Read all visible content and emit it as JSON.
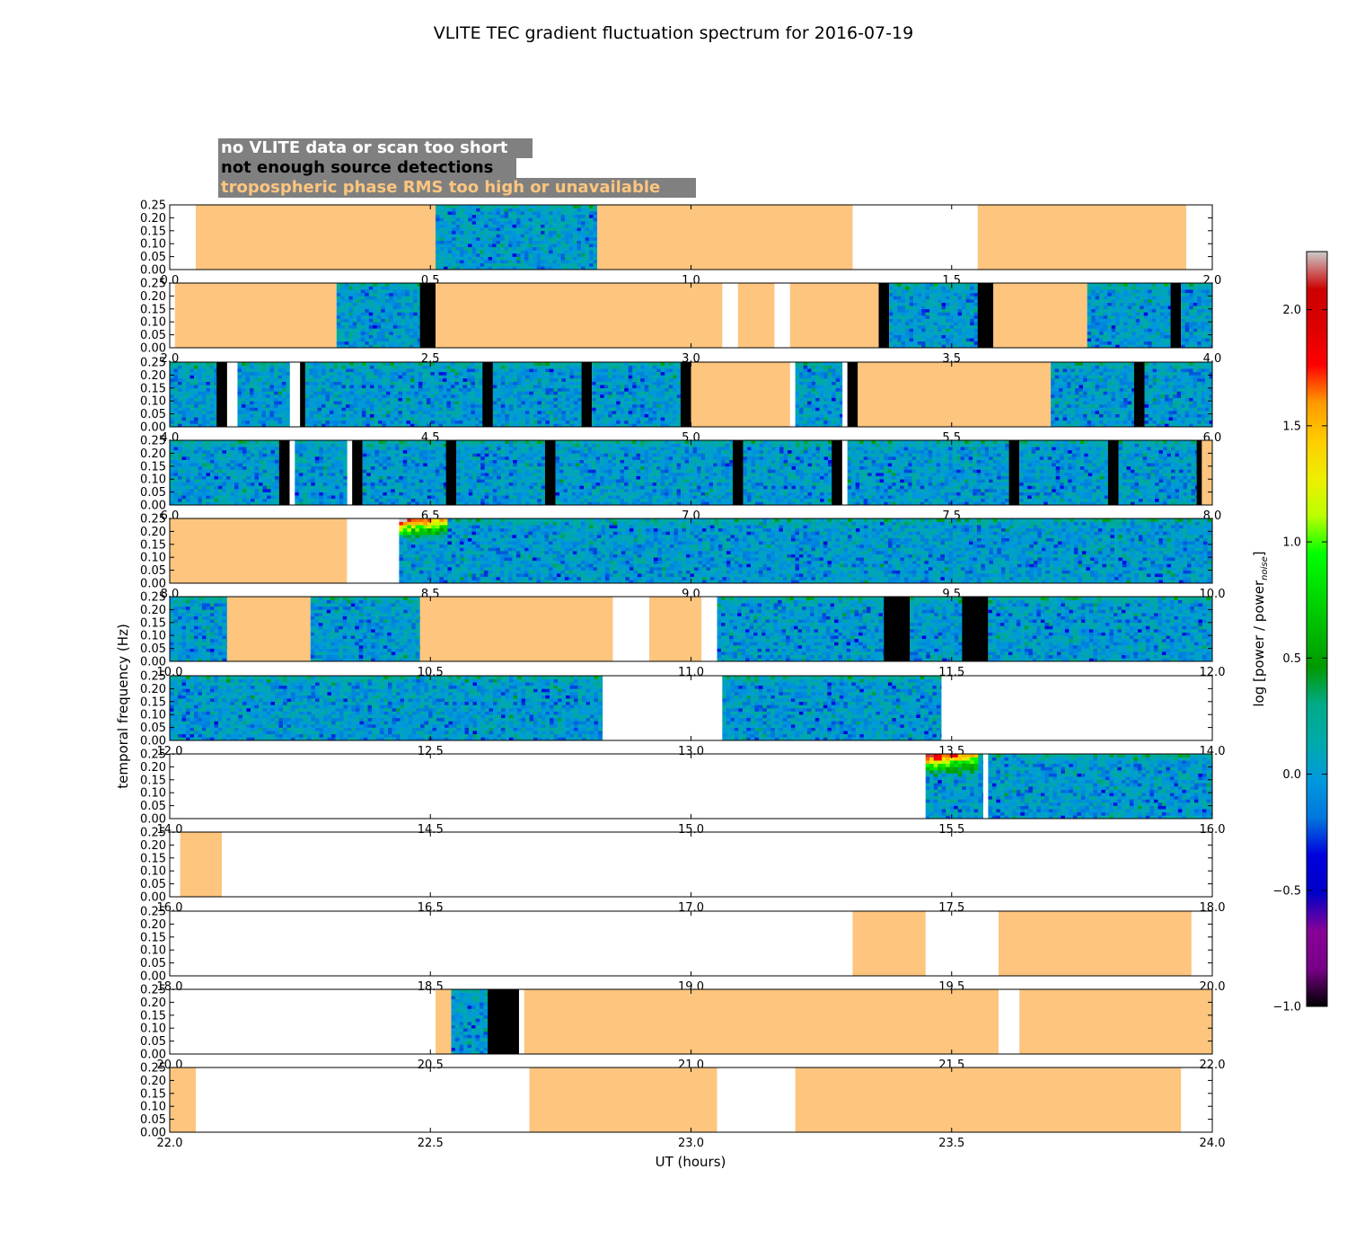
{
  "chart_data": {
    "type": "heatmap",
    "title": "VLITE TEC gradient fluctuation spectrum for 2016-07-19",
    "xlabel": "UT (hours)",
    "ylabel": "temporal frequency (Hz)",
    "colorbar": {
      "label": "log [power / power",
      "label_subscript": "noise",
      "label_close": "]",
      "range": [
        -1.0,
        2.25
      ],
      "ticks": [
        "−1.0",
        "−0.5",
        "0.0",
        "0.5",
        "1.0",
        "1.5",
        "2.0"
      ],
      "tick_values": [
        -1.0,
        -0.5,
        0.0,
        0.5,
        1.0,
        1.5,
        2.0
      ],
      "colormap": "nipy_spectral"
    },
    "ylim": [
      0,
      0.25
    ],
    "yticks": [
      "0.00",
      "0.05",
      "0.10",
      "0.15",
      "0.20",
      "0.25"
    ],
    "legend": [
      {
        "text": "no VLITE data or scan too short",
        "color": "#ffffff"
      },
      {
        "text": "not enough source detections",
        "color": "#000000"
      },
      {
        "text": "tropospheric phase RMS too high or unavailable",
        "color": "#fdc57e"
      }
    ],
    "colors": {
      "orange": "#fdc57e",
      "black": "#000000",
      "box_bg": "#808080"
    },
    "panels": [
      {
        "xlim": [
          0,
          2
        ],
        "xticks": [
          "0.0",
          "0.5",
          "1.0",
          "1.5",
          "2.0"
        ],
        "segments": [
          [
            0.05,
            0.51,
            "orange"
          ],
          [
            0.51,
            0.82,
            "spec"
          ],
          [
            0.82,
            1.31,
            "orange"
          ],
          [
            1.55,
            1.95,
            "orange"
          ]
        ]
      },
      {
        "xlim": [
          2,
          4
        ],
        "xticks": [
          "2.0",
          "2.5",
          "3.0",
          "3.5",
          "4.0"
        ],
        "segments": [
          [
            2.01,
            2.32,
            "orange"
          ],
          [
            2.32,
            2.48,
            "spec"
          ],
          [
            2.48,
            2.51,
            "black"
          ],
          [
            2.51,
            3.06,
            "orange"
          ],
          [
            3.09,
            3.16,
            "orange"
          ],
          [
            3.19,
            3.36,
            "orange"
          ],
          [
            3.36,
            3.38,
            "black"
          ],
          [
            3.38,
            3.55,
            "spec"
          ],
          [
            3.55,
            3.58,
            "black"
          ],
          [
            3.58,
            3.76,
            "orange"
          ],
          [
            3.76,
            3.92,
            "spec"
          ],
          [
            3.92,
            3.94,
            "black"
          ],
          [
            3.94,
            4.0,
            "spec"
          ]
        ]
      },
      {
        "xlim": [
          4,
          6
        ],
        "xticks": [
          "4.0",
          "4.5",
          "5.0",
          "5.5",
          "6.0"
        ],
        "segments": [
          [
            4.0,
            4.09,
            "spec"
          ],
          [
            4.09,
            4.11,
            "black"
          ],
          [
            4.13,
            4.23,
            "spec"
          ],
          [
            4.25,
            4.26,
            "black"
          ],
          [
            4.26,
            4.6,
            "spec"
          ],
          [
            4.6,
            4.62,
            "black"
          ],
          [
            4.62,
            4.79,
            "spec"
          ],
          [
            4.79,
            4.81,
            "black"
          ],
          [
            4.81,
            4.98,
            "spec"
          ],
          [
            4.98,
            5.0,
            "black"
          ],
          [
            5.0,
            5.19,
            "orange"
          ],
          [
            5.2,
            5.29,
            "spec"
          ],
          [
            5.3,
            5.32,
            "black"
          ],
          [
            5.32,
            5.69,
            "orange"
          ],
          [
            5.69,
            5.85,
            "spec"
          ],
          [
            5.85,
            5.87,
            "black"
          ],
          [
            5.87,
            6.0,
            "spec"
          ]
        ]
      },
      {
        "xlim": [
          6,
          8
        ],
        "xticks": [
          "6.0",
          "6.5",
          "7.0",
          "7.5",
          "8.0"
        ],
        "segments": [
          [
            6.0,
            6.21,
            "spec"
          ],
          [
            6.21,
            6.23,
            "black"
          ],
          [
            6.24,
            6.34,
            "spec"
          ],
          [
            6.35,
            6.37,
            "black"
          ],
          [
            6.37,
            6.53,
            "spec"
          ],
          [
            6.53,
            6.55,
            "black"
          ],
          [
            6.55,
            6.72,
            "spec"
          ],
          [
            6.72,
            6.74,
            "black"
          ],
          [
            6.74,
            7.08,
            "spec"
          ],
          [
            7.08,
            7.1,
            "black"
          ],
          [
            7.1,
            7.27,
            "spec"
          ],
          [
            7.27,
            7.29,
            "black"
          ],
          [
            7.3,
            7.61,
            "spec"
          ],
          [
            7.61,
            7.63,
            "black"
          ],
          [
            7.63,
            7.8,
            "spec"
          ],
          [
            7.8,
            7.82,
            "black"
          ],
          [
            7.82,
            7.97,
            "spec"
          ],
          [
            7.97,
            7.98,
            "black"
          ],
          [
            7.98,
            8.0,
            "orange"
          ]
        ]
      },
      {
        "xlim": [
          8,
          10
        ],
        "xticks": [
          "8.0",
          "8.5",
          "9.0",
          "9.5",
          "10.0"
        ],
        "segments": [
          [
            8.0,
            8.34,
            "orange"
          ],
          [
            8.44,
            10.0,
            "spec"
          ]
        ],
        "hot": [
          [
            8.44,
            8.53
          ]
        ]
      },
      {
        "xlim": [
          10,
          12
        ],
        "xticks": [
          "10.0",
          "10.5",
          "11.0",
          "11.5",
          "12.0"
        ],
        "segments": [
          [
            10.0,
            10.11,
            "spec"
          ],
          [
            10.11,
            10.27,
            "orange"
          ],
          [
            10.27,
            10.48,
            "spec"
          ],
          [
            10.48,
            10.85,
            "orange"
          ],
          [
            10.92,
            11.02,
            "orange"
          ],
          [
            11.05,
            11.37,
            "spec"
          ],
          [
            11.37,
            11.42,
            "black"
          ],
          [
            11.42,
            11.52,
            "spec"
          ],
          [
            11.52,
            11.57,
            "black"
          ],
          [
            11.57,
            12.0,
            "spec"
          ]
        ]
      },
      {
        "xlim": [
          12,
          14
        ],
        "xticks": [
          "12.0",
          "12.5",
          "13.0",
          "13.5",
          "14.0"
        ],
        "segments": [
          [
            12.0,
            12.83,
            "spec"
          ],
          [
            13.06,
            13.48,
            "spec"
          ]
        ]
      },
      {
        "xlim": [
          14,
          16
        ],
        "xticks": [
          "14.0",
          "14.5",
          "15.0",
          "15.5",
          "16.0"
        ],
        "segments": [
          [
            15.45,
            15.56,
            "spec"
          ],
          [
            15.57,
            16.0,
            "spec"
          ]
        ],
        "hot": [
          [
            15.45,
            15.55
          ]
        ]
      },
      {
        "xlim": [
          16,
          18
        ],
        "xticks": [
          "16.0",
          "16.5",
          "17.0",
          "17.5",
          "18.0"
        ],
        "segments": [
          [
            16.02,
            16.1,
            "orange"
          ]
        ]
      },
      {
        "xlim": [
          18,
          20
        ],
        "xticks": [
          "18.0",
          "18.5",
          "19.0",
          "19.5",
          "20.0"
        ],
        "segments": [
          [
            19.31,
            19.45,
            "orange"
          ],
          [
            19.59,
            19.96,
            "orange"
          ]
        ]
      },
      {
        "xlim": [
          20,
          22
        ],
        "xticks": [
          "20.0",
          "20.5",
          "21.0",
          "21.5",
          "22.0"
        ],
        "segments": [
          [
            20.51,
            20.54,
            "orange"
          ],
          [
            20.54,
            20.61,
            "spec"
          ],
          [
            20.61,
            20.67,
            "black"
          ],
          [
            20.68,
            21.59,
            "orange"
          ],
          [
            21.63,
            22.0,
            "orange"
          ]
        ]
      },
      {
        "xlim": [
          22,
          24
        ],
        "xticks": [
          "22.0",
          "22.5",
          "23.0",
          "23.5",
          "24.0"
        ],
        "segments": [
          [
            22.0,
            22.05,
            "orange"
          ],
          [
            22.69,
            23.05,
            "orange"
          ],
          [
            23.2,
            23.94,
            "orange"
          ]
        ]
      }
    ]
  }
}
